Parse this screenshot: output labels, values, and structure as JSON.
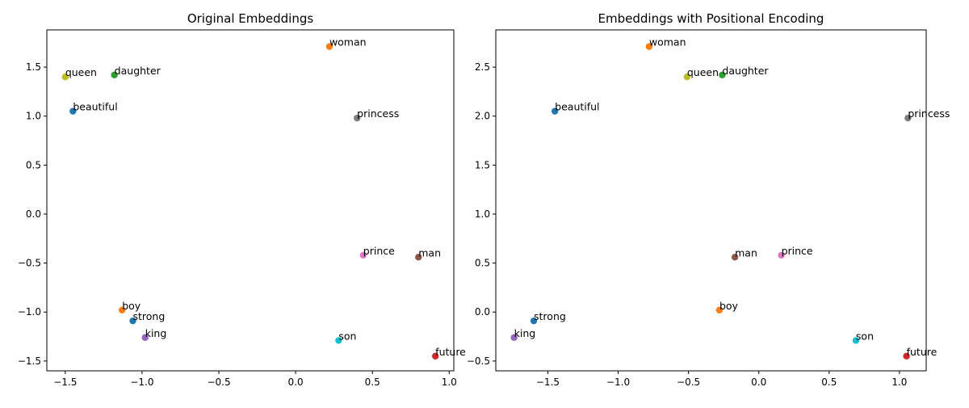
{
  "chart_data": [
    {
      "type": "scatter",
      "title": "Original Embeddings",
      "xlabel": "",
      "ylabel": "",
      "xlim": [
        -1.62,
        1.03
      ],
      "ylim": [
        -1.6,
        1.88
      ],
      "xticks": [
        -1.5,
        -1.0,
        -0.5,
        0.0,
        0.5,
        1.0
      ],
      "yticks": [
        -1.5,
        -1.0,
        -0.5,
        0.0,
        0.5,
        1.0,
        1.5
      ],
      "grid": false,
      "points": [
        {
          "label": "beautiful",
          "x": -1.45,
          "y": 1.05,
          "color": "#1f77b4"
        },
        {
          "label": "woman",
          "x": 0.22,
          "y": 1.71,
          "color": "#ff7f0e"
        },
        {
          "label": "daughter",
          "x": -1.18,
          "y": 1.42,
          "color": "#2ca02c"
        },
        {
          "label": "future",
          "x": 0.91,
          "y": -1.45,
          "color": "#d62728"
        },
        {
          "label": "king",
          "x": -0.98,
          "y": -1.26,
          "color": "#9467bd"
        },
        {
          "label": "man",
          "x": 0.8,
          "y": -0.44,
          "color": "#8c564b"
        },
        {
          "label": "prince",
          "x": 0.44,
          "y": -0.42,
          "color": "#e377c2"
        },
        {
          "label": "princess",
          "x": 0.4,
          "y": 0.98,
          "color": "#7f7f7f"
        },
        {
          "label": "queen",
          "x": -1.5,
          "y": 1.4,
          "color": "#bcbd22"
        },
        {
          "label": "son",
          "x": 0.28,
          "y": -1.29,
          "color": "#17becf"
        },
        {
          "label": "strong",
          "x": -1.06,
          "y": -1.09,
          "color": "#1f77b4"
        },
        {
          "label": "boy",
          "x": -1.13,
          "y": -0.98,
          "color": "#ff7f0e"
        }
      ]
    },
    {
      "type": "scatter",
      "title": "Embeddings with Positional Encoding",
      "xlabel": "",
      "ylabel": "",
      "xlim": [
        -1.87,
        1.19
      ],
      "ylim": [
        -0.6,
        2.88
      ],
      "xticks": [
        -1.5,
        -1.0,
        -0.5,
        0.0,
        0.5,
        1.0
      ],
      "yticks": [
        -0.5,
        0.0,
        0.5,
        1.0,
        1.5,
        2.0,
        2.5
      ],
      "grid": false,
      "points": [
        {
          "label": "beautiful",
          "x": -1.45,
          "y": 2.05,
          "color": "#1f77b4"
        },
        {
          "label": "woman",
          "x": -0.78,
          "y": 2.71,
          "color": "#ff7f0e"
        },
        {
          "label": "daughter",
          "x": -0.26,
          "y": 2.42,
          "color": "#2ca02c"
        },
        {
          "label": "future",
          "x": 1.05,
          "y": -0.45,
          "color": "#d62728"
        },
        {
          "label": "king",
          "x": -1.74,
          "y": -0.26,
          "color": "#9467bd"
        },
        {
          "label": "man",
          "x": -0.17,
          "y": 0.56,
          "color": "#8c564b"
        },
        {
          "label": "prince",
          "x": 0.16,
          "y": 0.58,
          "color": "#e377c2"
        },
        {
          "label": "princess",
          "x": 1.06,
          "y": 1.98,
          "color": "#7f7f7f"
        },
        {
          "label": "queen",
          "x": -0.51,
          "y": 2.4,
          "color": "#bcbd22"
        },
        {
          "label": "son",
          "x": 0.69,
          "y": -0.29,
          "color": "#17becf"
        },
        {
          "label": "strong",
          "x": -1.6,
          "y": -0.09,
          "color": "#1f77b4"
        },
        {
          "label": "boy",
          "x": -0.28,
          "y": 0.02,
          "color": "#ff7f0e"
        }
      ]
    }
  ]
}
